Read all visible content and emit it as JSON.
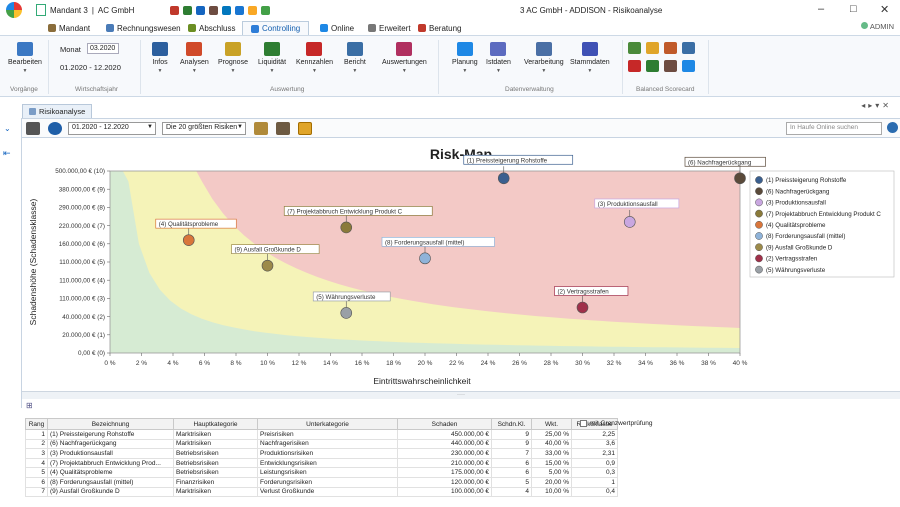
{
  "window": {
    "mandant_label": "Mandant 3",
    "company": "AC GmbH",
    "title": "3 AC GmbH - ADDISON - Risikoanalyse",
    "user": "ADMIN",
    "controls": [
      "–",
      "□",
      "✕"
    ]
  },
  "menu_tabs": [
    {
      "label": "Mandant",
      "icon_color": "#8a6d3b"
    },
    {
      "label": "Rechnungswesen",
      "icon_color": "#4a7bb7"
    },
    {
      "label": "Abschluss",
      "icon_color": "#6b8e23"
    },
    {
      "label": "Controlling",
      "icon_color": "#2e7dd7",
      "active": true
    },
    {
      "label": "Online",
      "icon_color": "#1e88e5"
    },
    {
      "label": "Erweitert",
      "icon_color": "#777777"
    },
    {
      "label": "Beratung",
      "icon_color": "#c0392b"
    }
  ],
  "ribbon": {
    "bearbeiten": "Bearbeiten",
    "monat_label": "Monat",
    "monat_value": "03.2020",
    "wj_range": "01.2020 - 12.2020",
    "buttons": [
      "Infos",
      "Analysen",
      "Prognose",
      "Liquidität",
      "Kennzahlen",
      "Bericht",
      "Auswertungen",
      "Planung",
      "Istdaten",
      "Verarbeitung",
      "Stammdaten"
    ],
    "groups": {
      "vorgaenge": "Vorgänge",
      "wirtschaftsjahr": "Wirtschaftsjahr",
      "auswertung": "Auswertung",
      "datenverwaltung": "Datenverwaltung",
      "bsc": "Balanced Scorecard"
    }
  },
  "doc_tab": "Risikoanalyse",
  "toolbar": {
    "period": "01.2020 - 12.2020",
    "filter": "Die 20 größten Risiken",
    "search_placeholder": "In Haufe Online suchen"
  },
  "chart_data": {
    "type": "scatter",
    "title": "Risk-Map",
    "xlabel": "Eintrittswahrscheinlichkeit",
    "ylabel": "Schadenshöhe (Schadensklasse)",
    "x_ticks": [
      "0 %",
      "2 %",
      "4 %",
      "6 %",
      "8 %",
      "10 %",
      "12 %",
      "14 %",
      "16 %",
      "18 %",
      "20 %",
      "22 %",
      "24 %",
      "26 %",
      "28 %",
      "30 %",
      "32 %",
      "34 %",
      "36 %",
      "38 %",
      "40 %"
    ],
    "y_ticks": [
      "0,00 € (0)",
      "20.000,00 € (1)",
      "40.000,00 € (2)",
      "110.000,00 € (3)",
      "110.000,00 € (4)",
      "110.000,00 € (5)",
      "160.000,00 € (6)",
      "220.000,00 € (7)",
      "290.000,00 € (8)",
      "380.000,00 € (9)",
      "500.000,00 € (10)"
    ],
    "xlim": [
      0,
      40
    ],
    "ylim": [
      0,
      10
    ],
    "zones": [
      "green",
      "yellow",
      "red"
    ],
    "legend_position": "right",
    "points": [
      {
        "name": "(1) Preissteigerung Rohstoffe",
        "x": 25,
        "y": 9.6,
        "color": "#3a5f8f"
      },
      {
        "name": "(6) Nachfragerückgang",
        "x": 40,
        "y": 9.6,
        "color": "#5a4a3a"
      },
      {
        "name": "(3) Produktionsausfall",
        "x": 33,
        "y": 7.2,
        "color": "#c9a7e0"
      },
      {
        "name": "(7) Projektabbruch Entwicklung Produkt C",
        "x": 15,
        "y": 6.9,
        "color": "#8a7a3a"
      },
      {
        "name": "(4) Qualitätsprobleme",
        "x": 5,
        "y": 6.2,
        "color": "#d9763b"
      },
      {
        "name": "(8) Forderungsausfall (mittel)",
        "x": 20,
        "y": 5.2,
        "color": "#8fb3d9"
      },
      {
        "name": "(9) Ausfall Großkunde D",
        "x": 10,
        "y": 4.8,
        "color": "#9c8a4a"
      },
      {
        "name": "(2) Vertragsstrafen",
        "x": 30,
        "y": 2.5,
        "color": "#a0304a"
      },
      {
        "name": "(5) Währungsverluste",
        "x": 15,
        "y": 2.2,
        "color": "#9aa0a6"
      }
    ]
  },
  "point_labels": [
    "(1) Preissteigerung Rohstoffe",
    "(6) Nachfragerückgang",
    "(3) Produktionsausfall",
    "(7) Projektabbruch Entwicklung Produkt C",
    "(4) Qualitätsprobleme",
    "(8) Forderungsausfall (mittel)",
    "(9) Ausfall Großkunde D",
    "(2) Vertragsstrafen",
    "(5) Währungsverluste"
  ],
  "legend": [
    "(1) Preissteigerung Rohstoffe",
    "(6) Nachfragerückgang",
    "(3) Produktionsausfall",
    "(7) Projektabbruch Entwicklung Produkt C",
    "(4) Qualitätsprobleme",
    "(8) Forderungsausfall (mittel)",
    "(9) Ausfall Großkunde D",
    "(2) Vertragsstrafen",
    "(5) Währungsverluste"
  ],
  "table": {
    "headers": [
      "Rang",
      "Bezeichnung",
      "Hauptkategorie",
      "Unterkategorie",
      "Schaden",
      "Schdn.Kl.",
      "Wkt.",
      "Risikoklasse"
    ],
    "rows": [
      [
        "1",
        "(1) Preissteigerung Rohstoffe",
        "Marktrisiken",
        "Preisrisiken",
        "450.000,00 €",
        "9",
        "25,00 %",
        "2,25"
      ],
      [
        "2",
        "(6) Nachfragerückgang",
        "Marktrisiken",
        "Nachfragerisiken",
        "440.000,00 €",
        "9",
        "40,00 %",
        "3,6"
      ],
      [
        "3",
        "(3) Produktionsausfall",
        "Betriebsrisiken",
        "Produktionsrisiken",
        "230.000,00 €",
        "7",
        "33,00 %",
        "2,31"
      ],
      [
        "4",
        "(7) Projektabbruch Entwicklung Prod...",
        "Betriebsrisiken",
        "Entwicklungsrisiken",
        "210.000,00 €",
        "6",
        "15,00 %",
        "0,9"
      ],
      [
        "5",
        "(4) Qualitätsprobleme",
        "Betriebsrisiken",
        "Leistungsrisiken",
        "175.000,00 €",
        "6",
        "5,00 %",
        "0,3"
      ],
      [
        "6",
        "(8) Forderungsausfall (mittel)",
        "Finanzrisiken",
        "Forderungsrisiken",
        "120.000,00 €",
        "5",
        "20,00 %",
        "1"
      ],
      [
        "7",
        "(9) Ausfall Großkunde D",
        "Marktrisiken",
        "Verlust Großkunde",
        "100.000,00 €",
        "4",
        "10,00 %",
        "0,4"
      ]
    ]
  },
  "grenzwert_label": "mit Grenzwertprüfung"
}
